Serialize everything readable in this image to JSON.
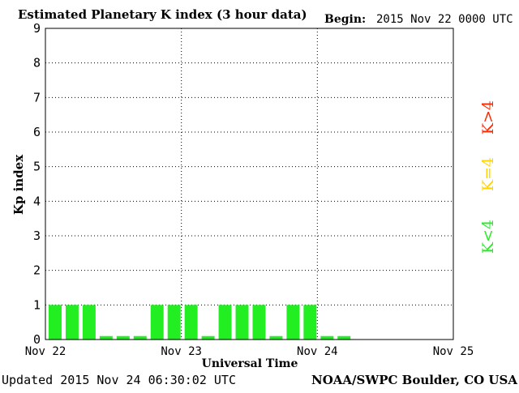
{
  "header": {
    "title": "Estimated Planetary K index (3 hour data)",
    "begin_label": "Begin:",
    "begin_value": "2015 Nov 22 0000 UTC"
  },
  "footer": {
    "updated": "Updated 2015 Nov 24 06:30:02 UTC",
    "source": "NOAA/SWPC Boulder, CO USA"
  },
  "legend": {
    "items": [
      {
        "label": "K>4",
        "color": "#ff2a00"
      },
      {
        "label": "K=4",
        "color": "#ffd400"
      },
      {
        "label": "K<4",
        "color": "#22ee22"
      }
    ]
  },
  "chart_data": {
    "type": "bar",
    "title": "Estimated Planetary K index (3 hour data)",
    "xlabel": "Universal Time",
    "ylabel": "Kp index",
    "ylim": [
      0,
      9
    ],
    "yticks": [
      "0",
      "1",
      "2",
      "3",
      "4",
      "5",
      "6",
      "7",
      "8",
      "9"
    ],
    "xticks": [
      "Nov 22",
      "Nov 23",
      "Nov 24",
      "Nov 25"
    ],
    "grid": true,
    "bar_color": "#22ee22",
    "values": [
      1,
      1,
      1,
      0.1,
      0.1,
      0.1,
      1,
      1,
      1,
      0.1,
      1,
      1,
      1,
      0.1,
      1,
      1,
      0.1,
      0.1
    ],
    "total_slots": 24
  }
}
